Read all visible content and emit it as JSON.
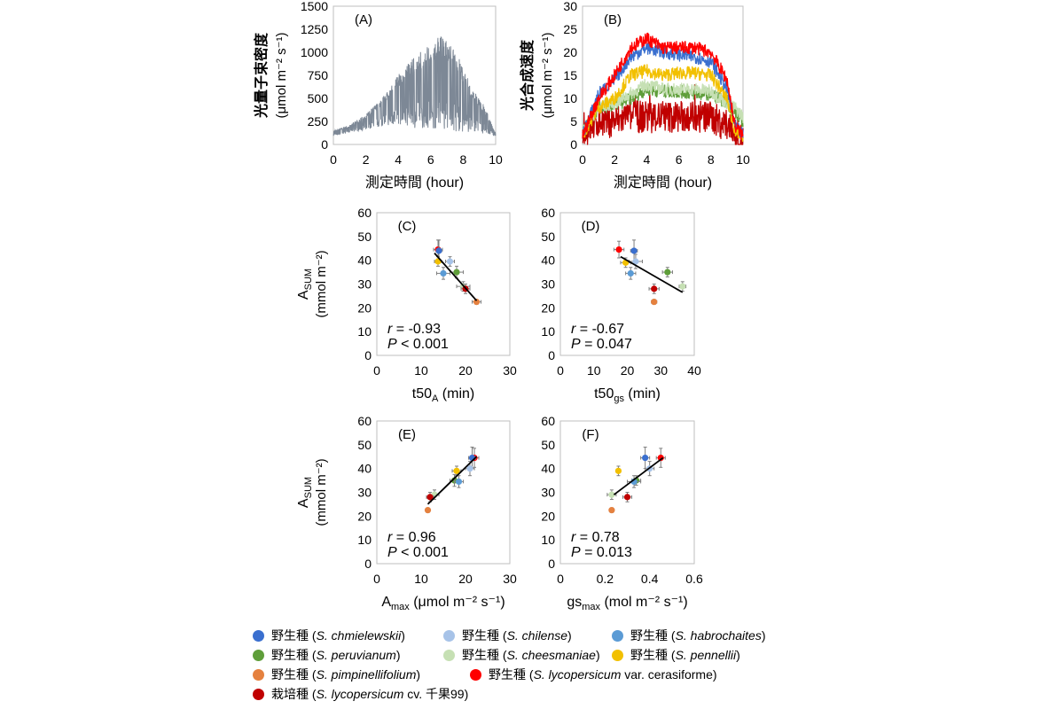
{
  "colors": {
    "chm": "#3a6fcf",
    "chi": "#a7c3e8",
    "hab": "#5b9bd5",
    "per": "#5f9e3a",
    "che": "#c6e0b4",
    "pen": "#f2c000",
    "pim": "#e5813f",
    "lyc": "#ff0000",
    "cult": "#c00000",
    "light": "#7d8896",
    "fit": "#000000"
  },
  "legend": {
    "rows": [
      [
        {
          "prefix": "野生種 (",
          "species": "S. chmielewskii",
          "suffix": ")",
          "color": "#3a6fcf"
        },
        {
          "prefix": "野生種 (",
          "species": "S. chilense",
          "suffix": ")",
          "color": "#a7c3e8"
        },
        {
          "prefix": "野生種 (",
          "species": "S. habrochaites",
          "suffix": ")",
          "color": "#5b9bd5"
        }
      ],
      [
        {
          "prefix": "野生種 (",
          "species": "S. peruvianum",
          "suffix": ")",
          "color": "#5f9e3a"
        },
        {
          "prefix": "野生種 (",
          "species": "S. cheesmaniae",
          "suffix": ")",
          "color": "#c6e0b4"
        },
        {
          "prefix": "野生種 (",
          "species": "S. pennellii",
          "suffix": ")",
          "color": "#f2c000"
        }
      ],
      [
        {
          "prefix": "野生種 (",
          "species": "S. pimpinellifolium",
          "suffix": ")",
          "color": "#e5813f"
        },
        {
          "prefix": "野生種 (",
          "species": "S. lycopersicum",
          "suffix": " var. cerasiforme)",
          "color": "#ff0000"
        }
      ],
      [
        {
          "prefix": "栽培種 (",
          "species": "S. lycopersicum",
          "suffix": " cv. 千果99)",
          "color": "#c00000"
        }
      ]
    ]
  },
  "chart_data": [
    {
      "type": "line",
      "panel": "(A)",
      "ylabel": "光量子束密度",
      "yunit": "(μmol m⁻² s⁻¹)",
      "xlabel": "測定時間 (hour)",
      "xlim": [
        0,
        10
      ],
      "ylim": [
        0,
        1500
      ],
      "xticks": [
        "0",
        "2",
        "4",
        "6",
        "8",
        "10"
      ],
      "yticks": [
        "0",
        "250",
        "500",
        "750",
        "1000",
        "1250",
        "1500"
      ],
      "series": [
        {
          "color": "light",
          "envelope_upper": [
            [
              0,
              150
            ],
            [
              1,
              210
            ],
            [
              2,
              330
            ],
            [
              3,
              500
            ],
            [
              4,
              760
            ],
            [
              5,
              950
            ],
            [
              6,
              1100
            ],
            [
              6.6,
              1180
            ],
            [
              7.5,
              1050
            ],
            [
              8.5,
              620
            ],
            [
              9.3,
              420
            ],
            [
              10,
              120
            ]
          ],
          "envelope_lower": [
            [
              0,
              90
            ],
            [
              1,
              130
            ],
            [
              2,
              160
            ],
            [
              3,
              200
            ],
            [
              4,
              220
            ],
            [
              5,
              180
            ],
            [
              6,
              170
            ],
            [
              7,
              150
            ],
            [
              8,
              130
            ],
            [
              9,
              120
            ],
            [
              10,
              90
            ]
          ]
        }
      ]
    },
    {
      "type": "line",
      "panel": "(B)",
      "ylabel": "光合成速度",
      "yunit": "(μmol m⁻² s⁻¹)",
      "xlabel": "測定時間 (hour)",
      "xlim": [
        0,
        10
      ],
      "ylim": [
        0,
        30
      ],
      "xticks": [
        "0",
        "2",
        "4",
        "6",
        "8",
        "10"
      ],
      "yticks": [
        "0",
        "5",
        "10",
        "15",
        "20",
        "25",
        "30"
      ],
      "series": [
        {
          "color": "lyc",
          "values": [
            [
              0,
              2
            ],
            [
              1,
              10
            ],
            [
              2,
              15
            ],
            [
              3,
              21
            ],
            [
              4,
              23
            ],
            [
              5,
              21
            ],
            [
              6,
              21
            ],
            [
              7,
              21
            ],
            [
              8,
              20
            ],
            [
              9,
              14
            ],
            [
              9.5,
              4
            ],
            [
              10,
              2
            ]
          ]
        },
        {
          "color": "chm",
          "values": [
            [
              0,
              2
            ],
            [
              1,
              11
            ],
            [
              2,
              14
            ],
            [
              3,
              19
            ],
            [
              4,
              21
            ],
            [
              5,
              20
            ],
            [
              6,
              19.5
            ],
            [
              7,
              19
            ],
            [
              8,
              18
            ],
            [
              9,
              12
            ],
            [
              9.5,
              4
            ],
            [
              10,
              2
            ]
          ]
        },
        {
          "color": "pen",
          "values": [
            [
              0,
              2
            ],
            [
              1,
              8
            ],
            [
              2,
              10
            ],
            [
              3,
              15
            ],
            [
              4,
              16
            ],
            [
              5,
              15
            ],
            [
              6,
              15.5
            ],
            [
              7,
              15.5
            ],
            [
              8,
              15
            ],
            [
              9,
              10
            ],
            [
              9.5,
              3
            ],
            [
              10,
              2
            ]
          ]
        },
        {
          "color": "che",
          "values": [
            [
              0,
              3
            ],
            [
              1,
              8
            ],
            [
              2,
              9
            ],
            [
              3,
              11
            ],
            [
              4,
              13
            ],
            [
              5,
              12
            ],
            [
              6,
              12
            ],
            [
              7,
              12
            ],
            [
              8,
              11.5
            ],
            [
              9,
              9
            ],
            [
              9.5,
              8
            ],
            [
              10,
              6
            ]
          ]
        },
        {
          "color": "per",
          "values": [
            [
              0,
              3
            ],
            [
              1,
              8
            ],
            [
              2,
              8.5
            ],
            [
              3,
              10
            ],
            [
              4,
              12
            ],
            [
              5,
              11.5
            ],
            [
              6,
              11.5
            ],
            [
              7,
              11
            ],
            [
              8,
              11
            ],
            [
              9,
              9
            ],
            [
              9.5,
              7
            ],
            [
              10,
              5
            ]
          ]
        },
        {
          "color": "cult",
          "values": [
            [
              0,
              2
            ],
            [
              1,
              5
            ],
            [
              2,
              5
            ],
            [
              3,
              6
            ],
            [
              4,
              6
            ],
            [
              5,
              6
            ],
            [
              6,
              6
            ],
            [
              7,
              6
            ],
            [
              8,
              6
            ],
            [
              9,
              4
            ],
            [
              9.5,
              2
            ],
            [
              10,
              1
            ]
          ]
        }
      ]
    },
    {
      "type": "scatter",
      "panel": "(C)",
      "ylabel": "A_SUM",
      "yunit": "(mmol m⁻²)",
      "xlabel_main": "t50",
      "xlabel_sub": "A",
      "xlabel_unit": " (min)",
      "xlim": [
        0,
        30
      ],
      "ylim": [
        0,
        60
      ],
      "xticks": [
        "0",
        "10",
        "20",
        "30"
      ],
      "yticks": [
        "0",
        "10",
        "20",
        "30",
        "40",
        "50",
        "60"
      ],
      "stat_r": "-0.93",
      "stat_p_op": " < ",
      "stat_p": "0.001",
      "fit": [
        [
          13,
          43
        ],
        [
          22.5,
          23
        ]
      ],
      "points": [
        {
          "x": 13.8,
          "y": 44.5,
          "xerr": 1.0,
          "yerr": 4.0,
          "color": "lyc"
        },
        {
          "x": 14.0,
          "y": 44.0,
          "xerr": 0.6,
          "yerr": 4.5,
          "color": "chm"
        },
        {
          "x": 13.8,
          "y": 39.5,
          "xerr": 0.8,
          "yerr": 2.0,
          "color": "pen"
        },
        {
          "x": 16.5,
          "y": 39.5,
          "xerr": 1.0,
          "yerr": 2.0,
          "color": "chi"
        },
        {
          "x": 15.0,
          "y": 34.5,
          "xerr": 1.5,
          "yerr": 2.5,
          "color": "hab"
        },
        {
          "x": 18.0,
          "y": 35.0,
          "xerr": 1.5,
          "yerr": 2.5,
          "color": "per"
        },
        {
          "x": 19.5,
          "y": 29.0,
          "xerr": 1.5,
          "yerr": 2.0,
          "color": "che"
        },
        {
          "x": 20.0,
          "y": 28.0,
          "xerr": 1.0,
          "yerr": 2.0,
          "color": "cult"
        },
        {
          "x": 22.5,
          "y": 22.5,
          "xerr": 1.0,
          "yerr": 1.0,
          "color": "pim"
        }
      ]
    },
    {
      "type": "scatter",
      "panel": "(D)",
      "ylabel": "",
      "yunit": "",
      "xlabel_main": "t50",
      "xlabel_sub": "gs",
      "xlabel_unit": " (min)",
      "xlim": [
        0,
        40
      ],
      "ylim": [
        0,
        60
      ],
      "xticks": [
        "0",
        "10",
        "20",
        "30",
        "40"
      ],
      "yticks": [
        "0",
        "10",
        "20",
        "30",
        "40",
        "50",
        "60"
      ],
      "stat_r": "-0.67",
      "stat_p_op": " = ",
      "stat_p": "0.047",
      "fit": [
        [
          18,
          41.5
        ],
        [
          36.5,
          26.5
        ]
      ],
      "points": [
        {
          "x": 17.5,
          "y": 44.5,
          "xerr": 1.5,
          "yerr": 3.5,
          "color": "lyc"
        },
        {
          "x": 22.0,
          "y": 44.0,
          "xerr": 1.0,
          "yerr": 4.5,
          "color": "chm"
        },
        {
          "x": 19.5,
          "y": 39.0,
          "xerr": 1.5,
          "yerr": 2.0,
          "color": "pen"
        },
        {
          "x": 22.5,
          "y": 39.5,
          "xerr": 2.0,
          "yerr": 3.0,
          "color": "chi"
        },
        {
          "x": 21.0,
          "y": 34.5,
          "xerr": 1.5,
          "yerr": 2.5,
          "color": "hab"
        },
        {
          "x": 32.0,
          "y": 35.0,
          "xerr": 1.5,
          "yerr": 2.0,
          "color": "per"
        },
        {
          "x": 36.5,
          "y": 29.0,
          "xerr": 1.0,
          "yerr": 2.0,
          "color": "che"
        },
        {
          "x": 28.0,
          "y": 28.0,
          "xerr": 1.5,
          "yerr": 2.0,
          "color": "cult"
        },
        {
          "x": 28.0,
          "y": 22.5,
          "xerr": 0.8,
          "yerr": 1.0,
          "color": "pim"
        }
      ]
    },
    {
      "type": "scatter",
      "panel": "(E)",
      "ylabel": "A_SUM",
      "yunit": "(mmol m⁻²)",
      "xlabel_main": "A",
      "xlabel_sub": "max",
      "xlabel_unit": " (μmol m⁻² s⁻¹)",
      "xlim": [
        0,
        30
      ],
      "ylim": [
        0,
        60
      ],
      "xticks": [
        "0",
        "10",
        "20",
        "30"
      ],
      "yticks": [
        "0",
        "10",
        "20",
        "30",
        "40",
        "50",
        "60"
      ],
      "stat_r": "0.96",
      "stat_p_op": " < ",
      "stat_p": "0.001",
      "fit": [
        [
          11.5,
          25
        ],
        [
          22.5,
          45
        ]
      ],
      "points": [
        {
          "x": 22.0,
          "y": 44.5,
          "xerr": 1.0,
          "yerr": 4.0,
          "color": "lyc"
        },
        {
          "x": 21.5,
          "y": 44.5,
          "xerr": 0.8,
          "yerr": 4.5,
          "color": "chm"
        },
        {
          "x": 18.0,
          "y": 39.0,
          "xerr": 1.0,
          "yerr": 2.0,
          "color": "pen"
        },
        {
          "x": 21.0,
          "y": 40.0,
          "xerr": 1.0,
          "yerr": 3.0,
          "color": "chi"
        },
        {
          "x": 17.5,
          "y": 35.0,
          "xerr": 1.0,
          "yerr": 2.5,
          "color": "per"
        },
        {
          "x": 18.5,
          "y": 34.5,
          "xerr": 1.0,
          "yerr": 2.5,
          "color": "hab"
        },
        {
          "x": 13.0,
          "y": 29.0,
          "xerr": 1.0,
          "yerr": 2.0,
          "color": "che"
        },
        {
          "x": 12.0,
          "y": 28.0,
          "xerr": 0.8,
          "yerr": 2.0,
          "color": "cult"
        },
        {
          "x": 11.5,
          "y": 22.5,
          "xerr": 0.5,
          "yerr": 1.0,
          "color": "pim"
        }
      ]
    },
    {
      "type": "scatter",
      "panel": "(F)",
      "ylabel": "",
      "yunit": "",
      "xlabel_main": "gs",
      "xlabel_sub": "max",
      "xlabel_unit": " (mol m⁻² s⁻¹)",
      "xlim": [
        0,
        0.6
      ],
      "ylim": [
        0,
        60
      ],
      "xticks": [
        "0",
        "0.2",
        "0.4",
        "0.6"
      ],
      "yticks": [
        "0",
        "10",
        "20",
        "30",
        "40",
        "50",
        "60"
      ],
      "stat_r": "0.78",
      "stat_p_op": " = ",
      "stat_p": "0.013",
      "fit": [
        [
          0.24,
          29
        ],
        [
          0.46,
          44.5
        ]
      ],
      "points": [
        {
          "x": 0.45,
          "y": 44.5,
          "xerr": 0.02,
          "yerr": 4.0,
          "color": "lyc"
        },
        {
          "x": 0.38,
          "y": 44.5,
          "xerr": 0.02,
          "yerr": 4.5,
          "color": "chm"
        },
        {
          "x": 0.26,
          "y": 39.0,
          "xerr": 0.01,
          "yerr": 2.0,
          "color": "pen"
        },
        {
          "x": 0.4,
          "y": 40.0,
          "xerr": 0.02,
          "yerr": 3.0,
          "color": "chi"
        },
        {
          "x": 0.34,
          "y": 35.0,
          "xerr": 0.02,
          "yerr": 2.0,
          "color": "per"
        },
        {
          "x": 0.33,
          "y": 34.5,
          "xerr": 0.03,
          "yerr": 2.5,
          "color": "hab"
        },
        {
          "x": 0.23,
          "y": 29.0,
          "xerr": 0.02,
          "yerr": 2.0,
          "color": "che"
        },
        {
          "x": 0.3,
          "y": 28.0,
          "xerr": 0.02,
          "yerr": 2.0,
          "color": "cult"
        },
        {
          "x": 0.23,
          "y": 22.5,
          "xerr": 0.01,
          "yerr": 1.0,
          "color": "pim"
        }
      ]
    }
  ]
}
